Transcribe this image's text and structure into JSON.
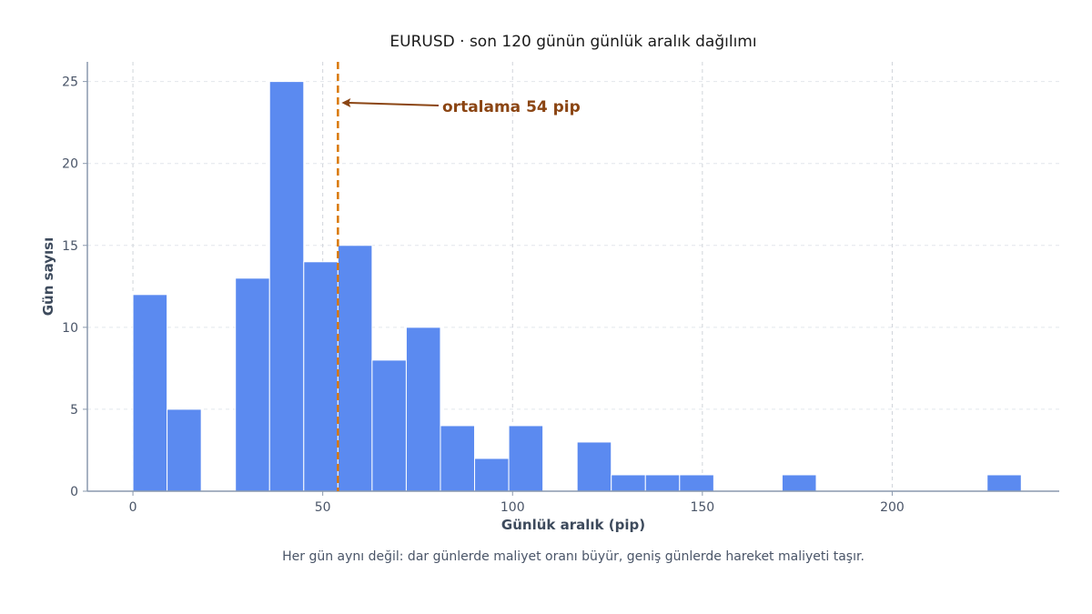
{
  "chart_data": {
    "type": "bar",
    "title": "EURUSD · son 120 günün günlük aralık dağılımı",
    "xlabel": "Günlük aralık (pip)",
    "ylabel": "Gün sayısı",
    "caption": "Her gün aynı değil: dar günlerde maliyet oranı büyür, geniş günlerde hareket maliyeti taşır.",
    "xlim": [
      -12,
      244
    ],
    "ylim": [
      0,
      26.2
    ],
    "xticks": [
      0,
      50,
      100,
      150,
      200
    ],
    "yticks": [
      0,
      5,
      10,
      15,
      20,
      25
    ],
    "bin_width": 9,
    "bins": [
      {
        "x0": 0,
        "count": 12
      },
      {
        "x0": 9,
        "count": 5
      },
      {
        "x0": 18,
        "count": 0
      },
      {
        "x0": 27,
        "count": 13
      },
      {
        "x0": 36,
        "count": 25
      },
      {
        "x0": 45,
        "count": 14
      },
      {
        "x0": 54,
        "count": 15
      },
      {
        "x0": 63,
        "count": 8
      },
      {
        "x0": 72,
        "count": 10
      },
      {
        "x0": 81,
        "count": 4
      },
      {
        "x0": 90,
        "count": 2
      },
      {
        "x0": 99,
        "count": 4
      },
      {
        "x0": 108,
        "count": 0
      },
      {
        "x0": 117,
        "count": 3
      },
      {
        "x0": 126,
        "count": 1
      },
      {
        "x0": 135,
        "count": 1
      },
      {
        "x0": 144,
        "count": 1
      },
      {
        "x0": 153,
        "count": 0
      },
      {
        "x0": 162,
        "count": 0
      },
      {
        "x0": 171,
        "count": 1
      },
      {
        "x0": 180,
        "count": 0
      },
      {
        "x0": 189,
        "count": 0
      },
      {
        "x0": 198,
        "count": 0
      },
      {
        "x0": 207,
        "count": 0
      },
      {
        "x0": 216,
        "count": 0
      },
      {
        "x0": 225,
        "count": 1
      }
    ],
    "mean": 54,
    "annotation": {
      "text": "ortalama 54 pip",
      "target_x": 54,
      "target_y": 23.7
    },
    "grid": true,
    "colors": {
      "bar": "#5b8af0",
      "mean_line": "#d97706",
      "annotation": "#8b4513"
    }
  }
}
